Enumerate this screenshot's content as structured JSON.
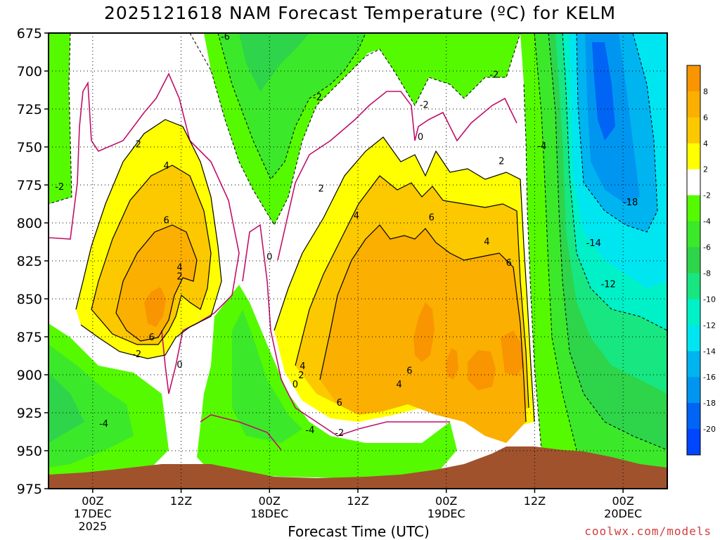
{
  "chart_data": {
    "type": "heatmap",
    "title": "2025121618 NAM Forecast Temperature (ºC) for KELM",
    "xlabel": "Forecast Time (UTC)",
    "credit": "coolwx.com/models",
    "y_ticks": [
      "675",
      "700",
      "725",
      "750",
      "775",
      "800",
      "825",
      "850",
      "875",
      "900",
      "925",
      "950",
      "975"
    ],
    "y_values_hpa": [
      675,
      700,
      725,
      750,
      775,
      800,
      825,
      850,
      875,
      900,
      925,
      950,
      975
    ],
    "ylim": [
      675,
      975
    ],
    "x_ticks": [
      {
        "hour": 6,
        "lines": [
          "00Z",
          "17DEC",
          "2025"
        ]
      },
      {
        "hour": 18,
        "lines": [
          "12Z"
        ]
      },
      {
        "hour": 30,
        "lines": [
          "00Z",
          "18DEC"
        ]
      },
      {
        "hour": 42,
        "lines": [
          "12Z"
        ]
      },
      {
        "hour": 54,
        "lines": [
          "00Z",
          "19DEC"
        ]
      },
      {
        "hour": 66,
        "lines": [
          "12Z"
        ]
      },
      {
        "hour": 78,
        "lines": [
          "00Z",
          "20DEC"
        ]
      }
    ],
    "xlim_forecast_hour": [
      0,
      84
    ],
    "colorbar": {
      "labels": [
        "8",
        "6",
        "4",
        "2",
        "-2",
        "-4",
        "-6",
        "-8",
        "-10",
        "-12",
        "-14",
        "-16",
        "-18",
        "-20"
      ],
      "colors": [
        "#f99500",
        "#fbaf00",
        "#fcc800",
        "#ffff00",
        "#ffffff",
        "#55fa00",
        "#3ce82a",
        "#2ed44a",
        "#18e680",
        "#00f0c8",
        "#00e6f0",
        "#00b4f0",
        "#0096f0",
        "#0064f5",
        "#0046ff"
      ]
    },
    "contour_labels": [
      {
        "text": "-6",
        "hour": 24.0,
        "hpa": 677
      },
      {
        "text": "-2",
        "hour": 36.5,
        "hpa": 717
      },
      {
        "text": "-2",
        "hour": 60.5,
        "hpa": 702
      },
      {
        "text": "-2",
        "hour": 51.0,
        "hpa": 722
      },
      {
        "text": "-4",
        "hour": 67.0,
        "hpa": 749
      },
      {
        "text": "-2",
        "hour": 1.5,
        "hpa": 776
      },
      {
        "text": "2",
        "hour": 12.2,
        "hpa": 748
      },
      {
        "text": "4",
        "hour": 16.0,
        "hpa": 762
      },
      {
        "text": "2",
        "hour": 37.0,
        "hpa": 777
      },
      {
        "text": "0",
        "hour": 50.5,
        "hpa": 743
      },
      {
        "text": "2",
        "hour": 61.5,
        "hpa": 759
      },
      {
        "text": "-18",
        "hour": 79.0,
        "hpa": 786
      },
      {
        "text": "6",
        "hour": 16.0,
        "hpa": 798
      },
      {
        "text": "4",
        "hour": 41.8,
        "hpa": 795
      },
      {
        "text": "6",
        "hour": 52.0,
        "hpa": 796
      },
      {
        "text": "4",
        "hour": 59.5,
        "hpa": 812
      },
      {
        "text": "-14",
        "hour": 74.0,
        "hpa": 813
      },
      {
        "text": "0",
        "hour": 30.0,
        "hpa": 822
      },
      {
        "text": "6",
        "hour": 62.5,
        "hpa": 826
      },
      {
        "text": "4",
        "hour": 17.8,
        "hpa": 829
      },
      {
        "text": "2",
        "hour": 17.8,
        "hpa": 835
      },
      {
        "text": "-12",
        "hour": 76.0,
        "hpa": 840
      },
      {
        "text": "6",
        "hour": 14.0,
        "hpa": 875
      },
      {
        "text": "-2",
        "hour": 12.0,
        "hpa": 886
      },
      {
        "text": "0",
        "hour": 17.8,
        "hpa": 893
      },
      {
        "text": "4",
        "hour": 34.5,
        "hpa": 894
      },
      {
        "text": "2",
        "hour": 34.3,
        "hpa": 900
      },
      {
        "text": "0",
        "hour": 33.5,
        "hpa": 906
      },
      {
        "text": "6",
        "hour": 49.0,
        "hpa": 897
      },
      {
        "text": "4",
        "hour": 47.6,
        "hpa": 906
      },
      {
        "text": "6",
        "hour": 39.5,
        "hpa": 918
      },
      {
        "text": "-4",
        "hour": 7.5,
        "hpa": 932
      },
      {
        "text": "-4",
        "hour": 35.5,
        "hpa": 936
      },
      {
        "text": "-2",
        "hour": 39.5,
        "hpa": 938
      }
    ]
  }
}
